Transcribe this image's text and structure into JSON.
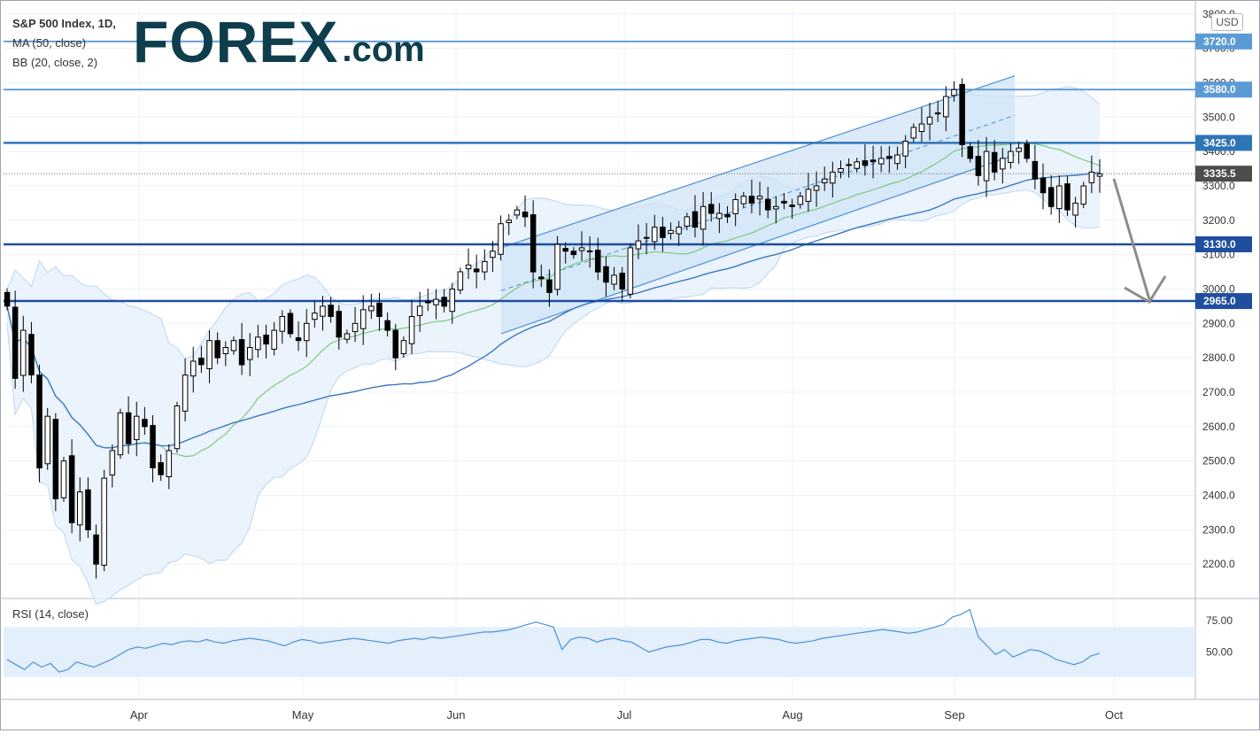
{
  "legend": {
    "title": "S&P 500 Index, 1D,",
    "ma": "MA (50, close)",
    "bb": "BB (20, close, 2)"
  },
  "logo": {
    "brand": "FOREX",
    "suffix": ".com",
    "brand_color": "#0e3d4c",
    "accent_color": "#5fc237"
  },
  "currency": "USD",
  "rsi": {
    "label": "RSI (14, close)",
    "ticks": [
      "75.00",
      "50.00"
    ],
    "band": [
      30,
      70
    ],
    "values": [
      44,
      40,
      36,
      42,
      38,
      41,
      34,
      36,
      42,
      40,
      38,
      41,
      44,
      48,
      52,
      54,
      53,
      55,
      57,
      56,
      58,
      59,
      58,
      60,
      58,
      57,
      59,
      60,
      61,
      60,
      59,
      57,
      55,
      58,
      60,
      59,
      57,
      58,
      59,
      60,
      61,
      60,
      59,
      58,
      57,
      59,
      60,
      61,
      60,
      62,
      61,
      62,
      63,
      64,
      65,
      66,
      66,
      67,
      68,
      70,
      72,
      74,
      72,
      70,
      52,
      60,
      62,
      61,
      58,
      60,
      61,
      59,
      58,
      54,
      50,
      52,
      54,
      55,
      56,
      58,
      60,
      60,
      58,
      57,
      59,
      60,
      61,
      62,
      61,
      60,
      58,
      57,
      58,
      59,
      61,
      62,
      63,
      64,
      65,
      66,
      67,
      68,
      67,
      66,
      65,
      66,
      68,
      70,
      72,
      78,
      80,
      84,
      62,
      55,
      48,
      52,
      46,
      49,
      52,
      51,
      48,
      44,
      42,
      40,
      42,
      47,
      49
    ],
    "line_color": "#4a90d9",
    "band_color": "#dcebfa"
  },
  "chart_data": {
    "type": "candlestick",
    "title": "S&P 500 Index, 1D,",
    "x_tick_labels": [
      "Apr",
      "May",
      "Jun",
      "Jul",
      "Aug",
      "Sep",
      "Oct"
    ],
    "y_ticks": [
      2200,
      2300,
      2400,
      2500,
      2600,
      2700,
      2800,
      2900,
      3000,
      3100,
      3200,
      3300,
      3400,
      3500,
      3600,
      3700,
      3800
    ],
    "ylim": [
      2100,
      3820
    ],
    "annotated_levels": [
      {
        "label": "3720.0",
        "value": 3720,
        "color": "#5b9bd5"
      },
      {
        "label": "3580.0",
        "value": 3580,
        "color": "#5b9bd5"
      },
      {
        "label": "3425.0",
        "value": 3425,
        "color": "#2e75b6"
      },
      {
        "label": "3130.0",
        "value": 3130,
        "color": "#1f4e9e"
      },
      {
        "label": "2965.0",
        "value": 2965,
        "color": "#1f4e9e"
      }
    ],
    "last_price": {
      "label": "3335.5",
      "value": 3335.5
    },
    "indicators": [
      "MA (50, close)",
      "BB (20, close, 2)",
      "RSI (14, close)"
    ],
    "closes": [
      2950,
      2740,
      2880,
      2750,
      2480,
      2630,
      2390,
      2500,
      2320,
      2410,
      2300,
      2200,
      2450,
      2530,
      2640,
      2550,
      2630,
      2600,
      2480,
      2460,
      2530,
      2660,
      2750,
      2790,
      2780,
      2850,
      2800,
      2830,
      2850,
      2780,
      2830,
      2860,
      2840,
      2880,
      2920,
      2870,
      2850,
      2900,
      2930,
      2950,
      2920,
      2860,
      2870,
      2900,
      2940,
      2950,
      2920,
      2880,
      2800,
      2850,
      2920,
      2950,
      2960,
      2970,
      2950,
      3000,
      3050,
      3070,
      3050,
      3080,
      3110,
      3190,
      3200,
      3230,
      3210,
      3050,
      3030,
      2990,
      3130,
      3110,
      3100,
      3120,
      3110,
      3050,
      3020,
      3040,
      3000,
      3120,
      3140,
      3150,
      3180,
      3150,
      3170,
      3180,
      3210,
      3180,
      3240,
      3220,
      3220,
      3210,
      3260,
      3270,
      3250,
      3270,
      3230,
      3240,
      3250,
      3240,
      3270,
      3290,
      3300,
      3320,
      3340,
      3350,
      3360,
      3370,
      3360,
      3370,
      3380,
      3380,
      3390,
      3430,
      3470,
      3480,
      3500,
      3510,
      3560,
      3580,
      3420,
      3380,
      3330,
      3400,
      3340,
      3380,
      3400,
      3410,
      3380,
      3320,
      3280,
      3240,
      3300,
      3230,
      3250,
      3300,
      3340,
      3335
    ]
  }
}
